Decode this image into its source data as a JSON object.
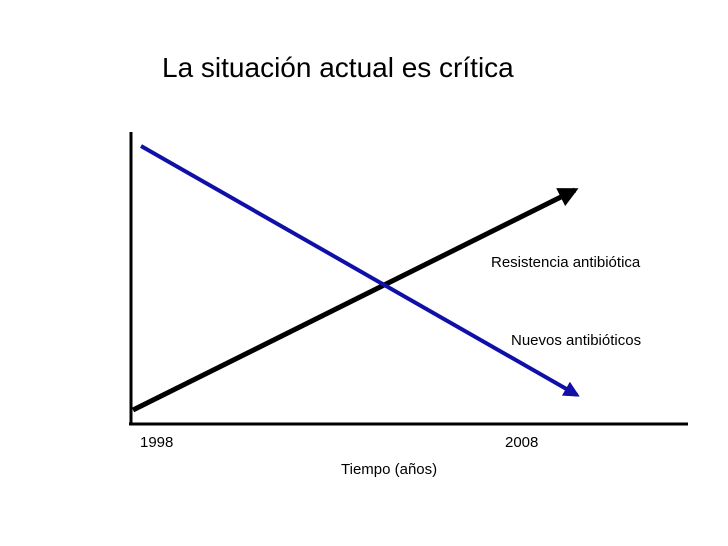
{
  "title": "La situación actual es crítica",
  "chart_data": {
    "type": "line",
    "x_tick_labels": [
      "1998",
      "2008"
    ],
    "xlabel": "Tiempo (años)",
    "ylabel": "",
    "series": [
      {
        "name": "Resistencia antibiótica",
        "trend": "increasing",
        "color": "#000000"
      },
      {
        "name": "Nuevos antibióticos",
        "trend": "decreasing",
        "color": "#1010a8"
      }
    ],
    "grid": false,
    "legend": "inline labels"
  }
}
